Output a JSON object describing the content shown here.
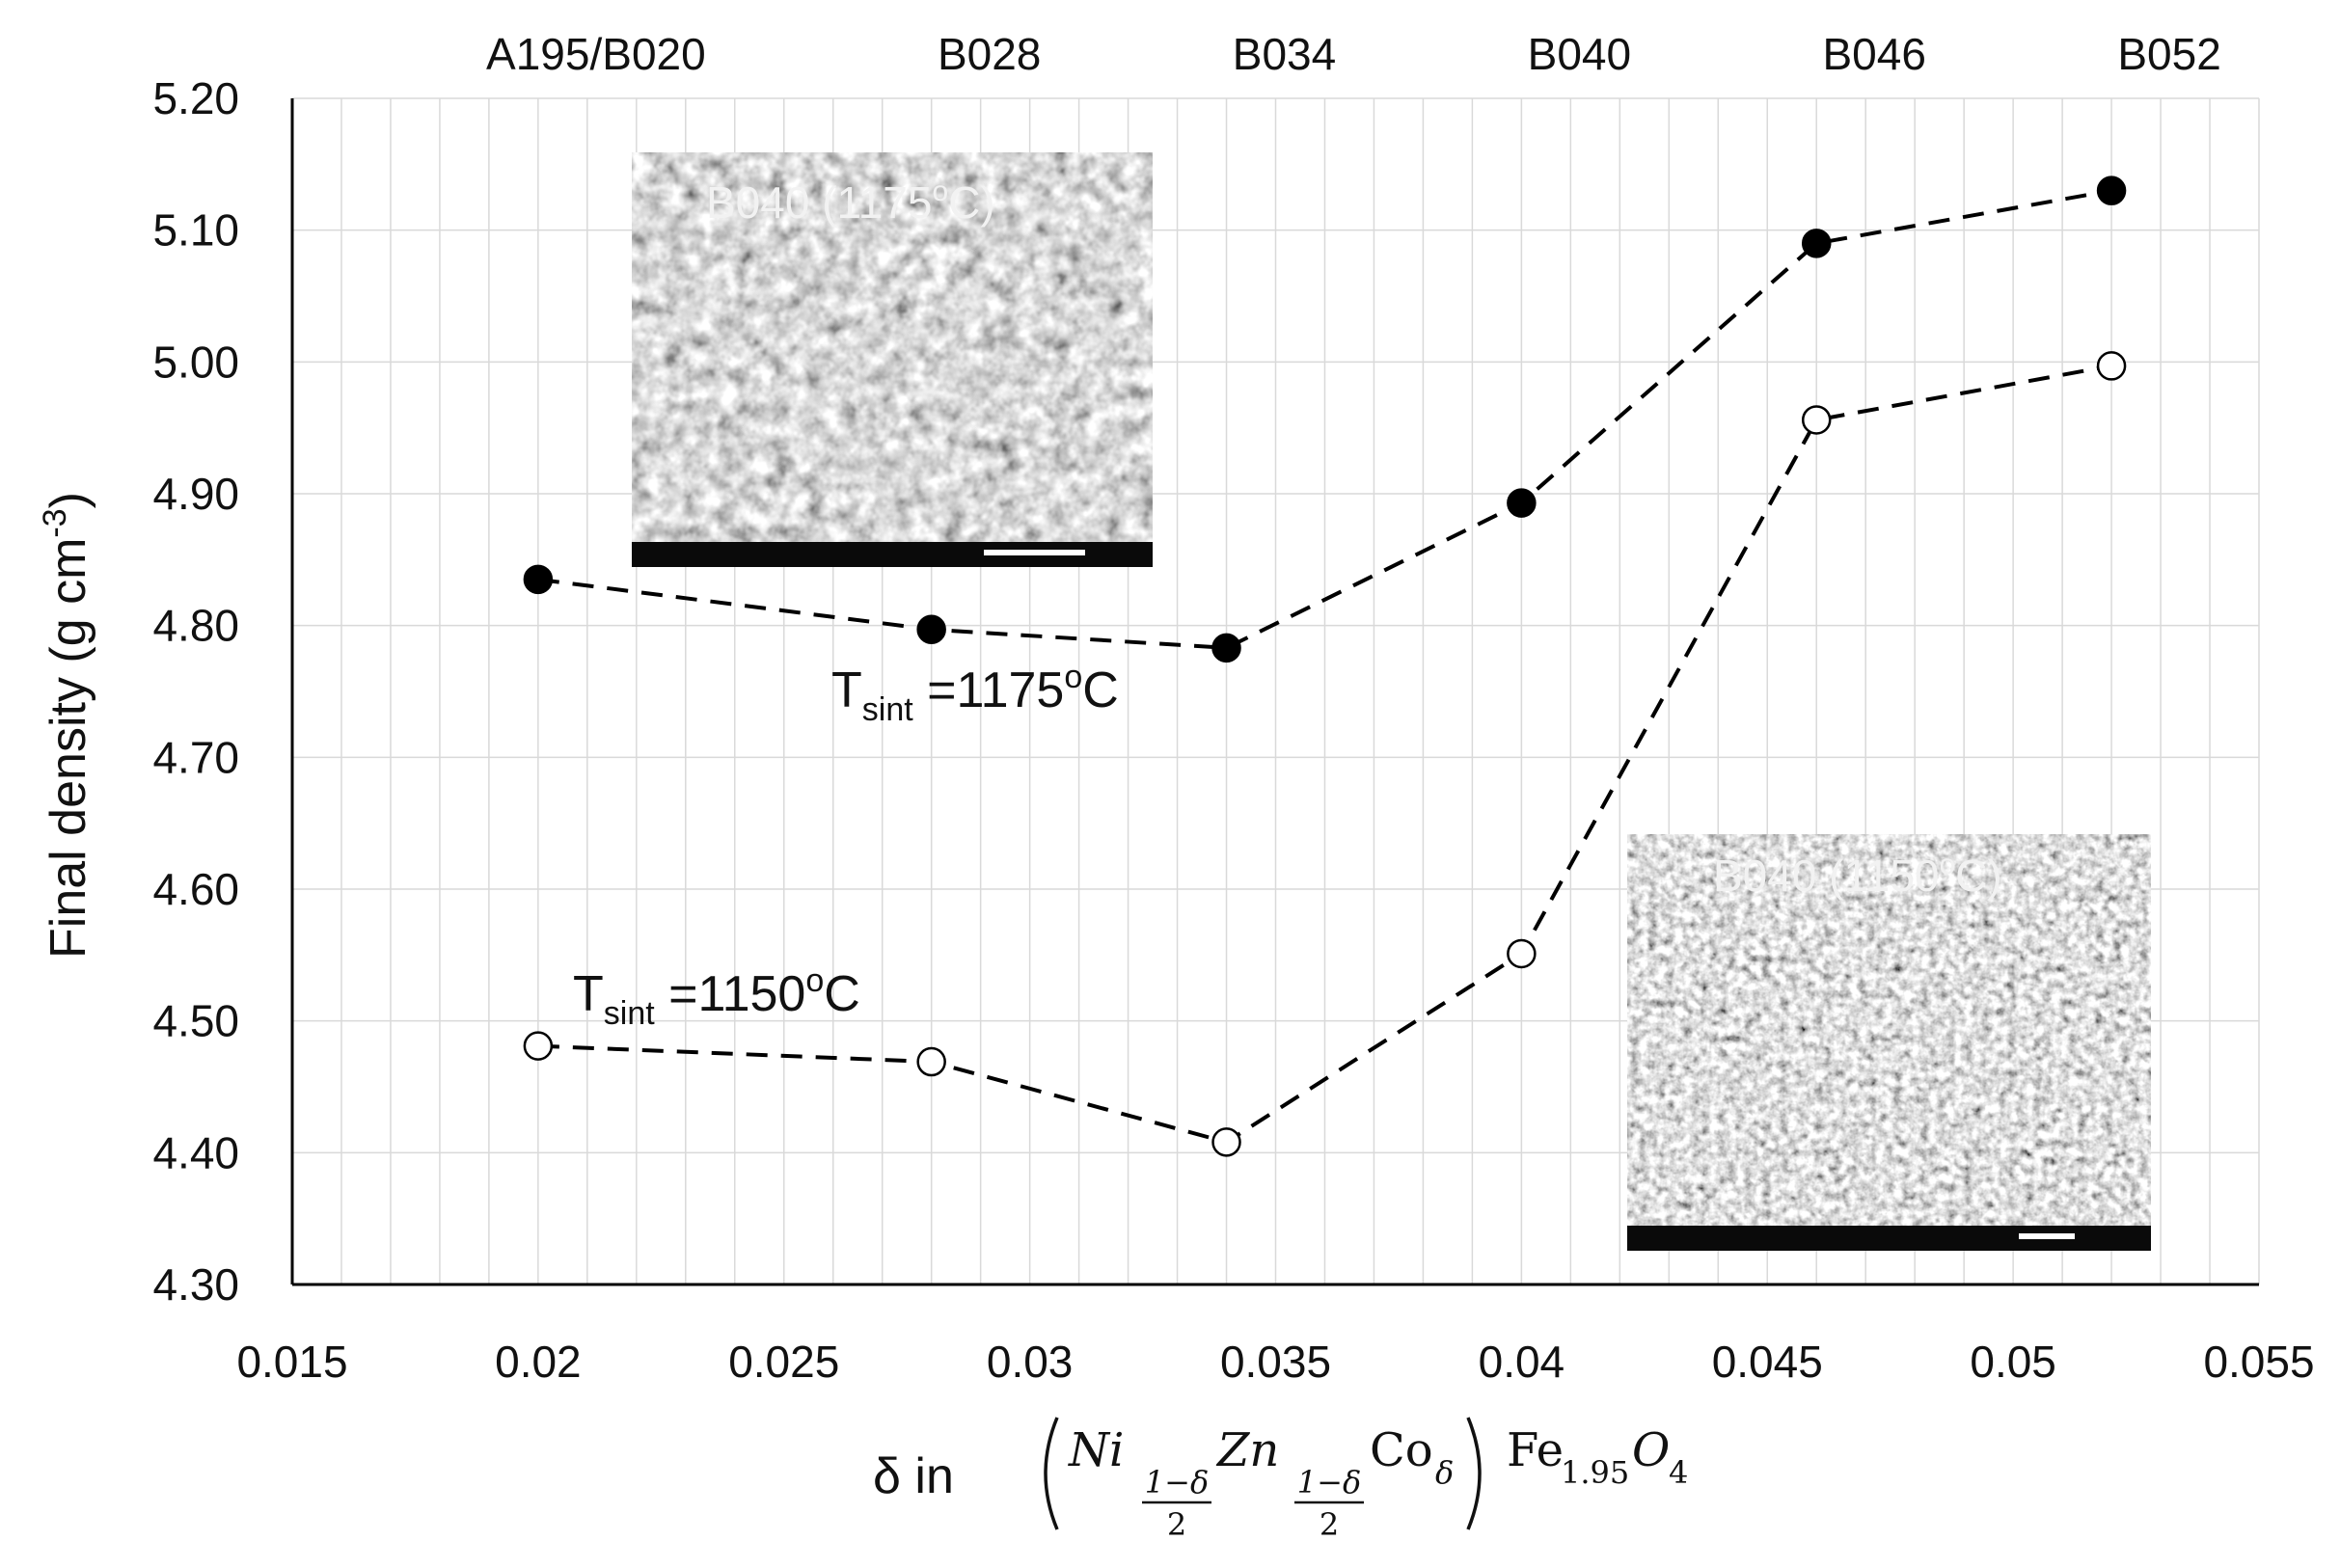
{
  "chart_data": {
    "type": "scatter",
    "ylabel": "Final density (g cm",
    "ylabel_sup": "-3",
    "ylabel_close": ")",
    "xlabel_prefix": "δ in",
    "xlabel_formula": {
      "ni": "Ni",
      "zn": "Zn",
      "co": "Co",
      "sub_frac_num": "1−δ",
      "sub_frac_den": "2",
      "sub_delta": "δ",
      "fe": "Fe",
      "fe_sub": "1.95",
      "o": "O",
      "o_sub": "4"
    },
    "xlim": [
      0.015,
      0.055
    ],
    "ylim": [
      4.3,
      5.2
    ],
    "x_ticks": [
      0.015,
      0.02,
      0.025,
      0.03,
      0.035,
      0.04,
      0.045,
      0.05,
      0.055
    ],
    "x_tick_labels": [
      "0.015",
      "0.02",
      "0.025",
      "0.03",
      "0.035",
      "0.04",
      "0.045",
      "0.05",
      "0.055"
    ],
    "y_ticks": [
      4.3,
      4.4,
      4.5,
      4.6,
      4.7,
      4.8,
      4.9,
      5.0,
      5.1,
      5.2
    ],
    "y_tick_labels": [
      "4.30",
      "4.40",
      "4.50",
      "4.60",
      "4.70",
      "4.80",
      "4.90",
      "5.00",
      "5.10",
      "5.20"
    ],
    "grid": true,
    "sample_labels": [
      {
        "x": 0.02,
        "label": "A195/B020"
      },
      {
        "x": 0.028,
        "label": "B028"
      },
      {
        "x": 0.034,
        "label": "B034"
      },
      {
        "x": 0.04,
        "label": "B040"
      },
      {
        "x": 0.046,
        "label": "B046"
      },
      {
        "x": 0.052,
        "label": "B052"
      }
    ],
    "series": [
      {
        "label_main": "T",
        "label_sub": "sint",
        "label_rest": " =1175",
        "label_sup": "o",
        "label_unit": "C",
        "marker": "filled",
        "color": "#000000",
        "x": [
          0.02,
          0.028,
          0.034,
          0.04,
          0.046,
          0.052
        ],
        "y": [
          4.835,
          4.797,
          4.783,
          4.893,
          5.09,
          5.13
        ]
      },
      {
        "label_main": "T",
        "label_sub": "sint",
        "label_rest": " =1150",
        "label_sup": "o",
        "label_unit": "C",
        "marker": "hollow",
        "color": "#000000",
        "x": [
          0.02,
          0.028,
          0.034,
          0.04,
          0.046,
          0.052
        ],
        "y": [
          4.481,
          4.469,
          4.408,
          4.551,
          4.956,
          4.997
        ]
      }
    ],
    "insets": [
      {
        "label": "B040 (1175",
        "label_sup": "o",
        "label_end": "C)"
      },
      {
        "label": "B040 (1150",
        "label_sup": "o",
        "label_end": "C)"
      }
    ],
    "colors": {
      "axis": "#000000",
      "grid": "#d9d9d9",
      "sem_bg": "#7d7d7d",
      "sem_bar": "#0a0a0a"
    }
  }
}
